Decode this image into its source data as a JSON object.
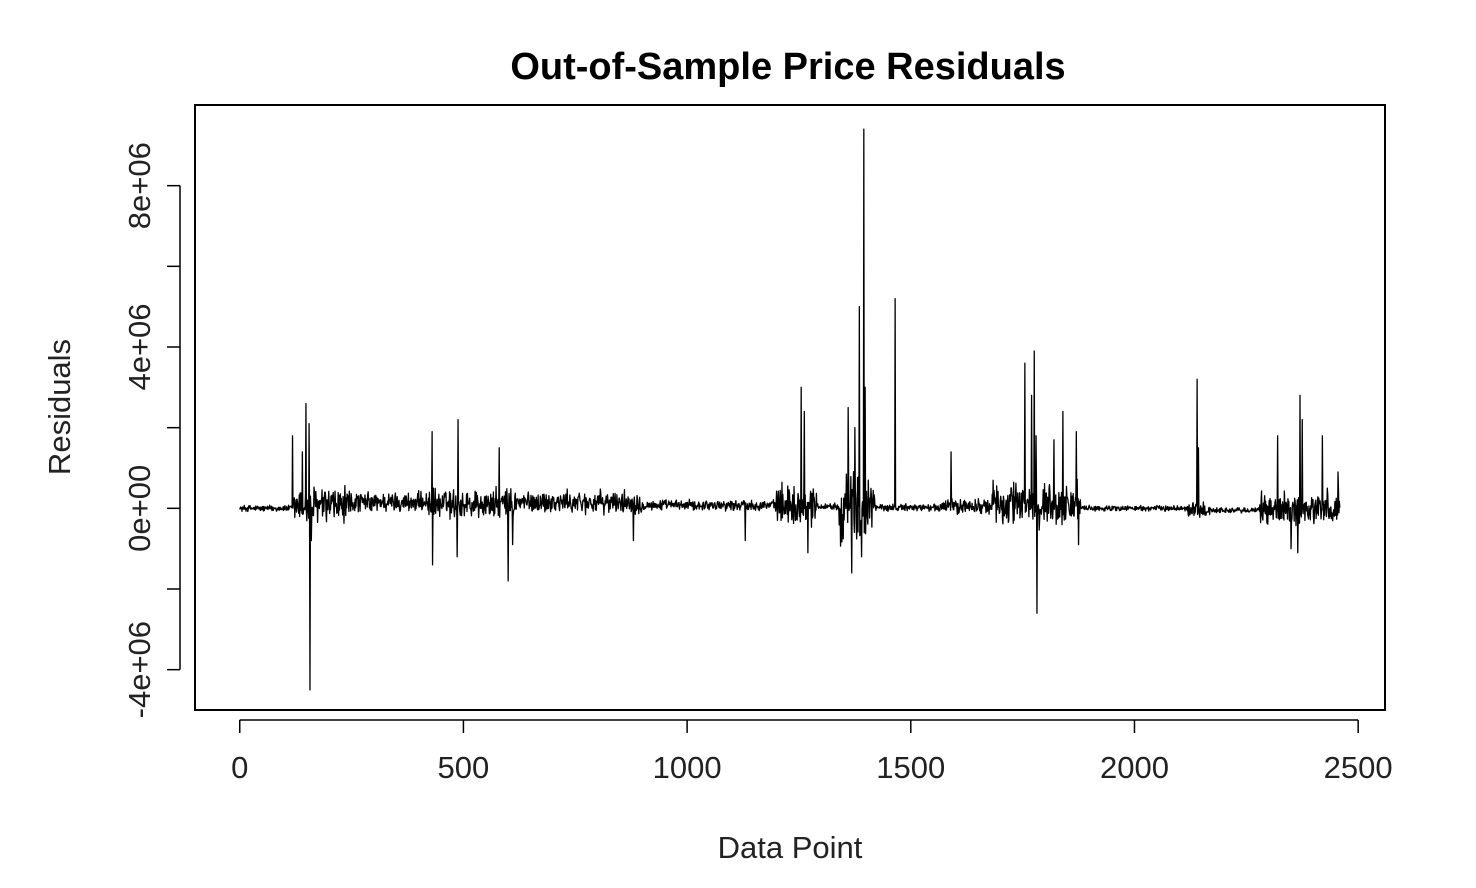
{
  "chart_data": {
    "type": "line",
    "title": "Out-of-Sample Price Residuals",
    "xlabel": "Data Point",
    "ylabel": "Residuals",
    "xlim": [
      -100,
      2560
    ],
    "ylim": [
      -5000000,
      10000000
    ],
    "x_ticks": [
      0,
      500,
      1000,
      1500,
      2000,
      2500
    ],
    "x_tick_labels": [
      "0",
      "500",
      "1000",
      "1500",
      "2000",
      "2500"
    ],
    "y_ticks": [
      -4000000,
      -2000000,
      0,
      2000000,
      4000000,
      6000000,
      8000000
    ],
    "y_tick_labels": [
      "-4e+06",
      "",
      "0e+00",
      "",
      "4e+06",
      "",
      "8e+06"
    ],
    "grid": false,
    "legend": "none",
    "line_color": "#000000",
    "n_points": 2460,
    "regimes": [
      {
        "x_start": 0,
        "x_end": 120,
        "amplitude": 80000,
        "offset": 0
      },
      {
        "x_start": 120,
        "x_end": 250,
        "amplitude": 500000,
        "offset": 50000
      },
      {
        "x_start": 250,
        "x_end": 420,
        "amplitude": 250000,
        "offset": 150000
      },
      {
        "x_start": 420,
        "x_end": 620,
        "amplitude": 380000,
        "offset": 100000
      },
      {
        "x_start": 620,
        "x_end": 900,
        "amplitude": 280000,
        "offset": 150000
      },
      {
        "x_start": 900,
        "x_end": 1200,
        "amplitude": 130000,
        "offset": 80000
      },
      {
        "x_start": 1200,
        "x_end": 1290,
        "amplitude": 500000,
        "offset": 100000
      },
      {
        "x_start": 1290,
        "x_end": 1340,
        "amplitude": 80000,
        "offset": 50000
      },
      {
        "x_start": 1340,
        "x_end": 1420,
        "amplitude": 900000,
        "offset": 0
      },
      {
        "x_start": 1420,
        "x_end": 1570,
        "amplitude": 90000,
        "offset": 20000
      },
      {
        "x_start": 1570,
        "x_end": 1680,
        "amplitude": 200000,
        "offset": 50000
      },
      {
        "x_start": 1680,
        "x_end": 1880,
        "amplitude": 550000,
        "offset": 100000
      },
      {
        "x_start": 1880,
        "x_end": 2120,
        "amplitude": 70000,
        "offset": 0
      },
      {
        "x_start": 2120,
        "x_end": 2170,
        "amplitude": 220000,
        "offset": -50000
      },
      {
        "x_start": 2170,
        "x_end": 2280,
        "amplitude": 70000,
        "offset": -50000
      },
      {
        "x_start": 2280,
        "x_end": 2460,
        "amplitude": 420000,
        "offset": 0
      }
    ],
    "spikes": [
      {
        "x": 118,
        "y": 1800000
      },
      {
        "x": 140,
        "y": 1400000
      },
      {
        "x": 148,
        "y": 2600000
      },
      {
        "x": 155,
        "y": 2100000
      },
      {
        "x": 157,
        "y": -4500000
      },
      {
        "x": 160,
        "y": -800000
      },
      {
        "x": 430,
        "y": 1900000
      },
      {
        "x": 431,
        "y": -1400000
      },
      {
        "x": 488,
        "y": 2200000
      },
      {
        "x": 486,
        "y": -1200000
      },
      {
        "x": 580,
        "y": 1500000
      },
      {
        "x": 600,
        "y": -1800000
      },
      {
        "x": 610,
        "y": -900000
      },
      {
        "x": 880,
        "y": -800000
      },
      {
        "x": 1130,
        "y": -800000
      },
      {
        "x": 1255,
        "y": 3000000
      },
      {
        "x": 1262,
        "y": 2400000
      },
      {
        "x": 1270,
        "y": -1100000
      },
      {
        "x": 1360,
        "y": 2500000
      },
      {
        "x": 1368,
        "y": -1600000
      },
      {
        "x": 1375,
        "y": 2000000
      },
      {
        "x": 1385,
        "y": 5000000
      },
      {
        "x": 1390,
        "y": -1200000
      },
      {
        "x": 1395,
        "y": 9400000
      },
      {
        "x": 1398,
        "y": 3000000
      },
      {
        "x": 1465,
        "y": 5200000
      },
      {
        "x": 1590,
        "y": 1400000
      },
      {
        "x": 1755,
        "y": 3600000
      },
      {
        "x": 1770,
        "y": 2800000
      },
      {
        "x": 1776,
        "y": 3900000
      },
      {
        "x": 1780,
        "y": 1800000
      },
      {
        "x": 1782,
        "y": -2600000
      },
      {
        "x": 1820,
        "y": 1700000
      },
      {
        "x": 1840,
        "y": 2400000
      },
      {
        "x": 1870,
        "y": 1900000
      },
      {
        "x": 1875,
        "y": -900000
      },
      {
        "x": 2140,
        "y": 3200000
      },
      {
        "x": 2143,
        "y": 1500000
      },
      {
        "x": 2320,
        "y": 1800000
      },
      {
        "x": 2350,
        "y": -1000000
      },
      {
        "x": 2365,
        "y": -1100000
      },
      {
        "x": 2370,
        "y": 2800000
      },
      {
        "x": 2375,
        "y": 2200000
      },
      {
        "x": 2420,
        "y": 1800000
      },
      {
        "x": 2455,
        "y": 900000
      }
    ]
  }
}
